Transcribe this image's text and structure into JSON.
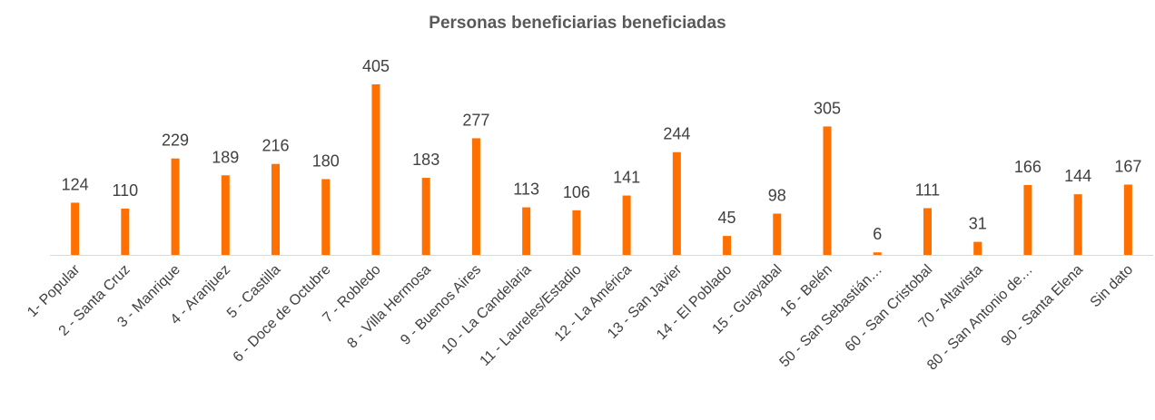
{
  "chart_data": {
    "type": "bar",
    "title": "Personas beneficiarias beneficiadas",
    "categories": [
      "1- Popular",
      "2 - Santa Cruz",
      "3 - Manrique",
      "4 - Aranjuez",
      "5 - Castilla",
      "6 - Doce de Octubre",
      "7 - Robledo",
      "8 - Villa Hermosa",
      "9 - Buenos Aires",
      "10 - La Candelaria",
      "11 - Laureles/Estadio",
      "12 - La América",
      "13 - San Javier",
      "14 - El Poblado",
      "15 - Guayabal",
      "16 - Belén",
      "50 - San Sebastián…",
      "60 - San Cristobal",
      "70 - Altavista",
      "80 - San Antonio de…",
      "90 - Santa Elena",
      "Sin dato"
    ],
    "values": [
      124,
      110,
      229,
      189,
      216,
      180,
      405,
      183,
      277,
      113,
      106,
      141,
      244,
      45,
      98,
      305,
      6,
      111,
      31,
      166,
      144,
      167
    ],
    "color": "#ff7000"
  }
}
